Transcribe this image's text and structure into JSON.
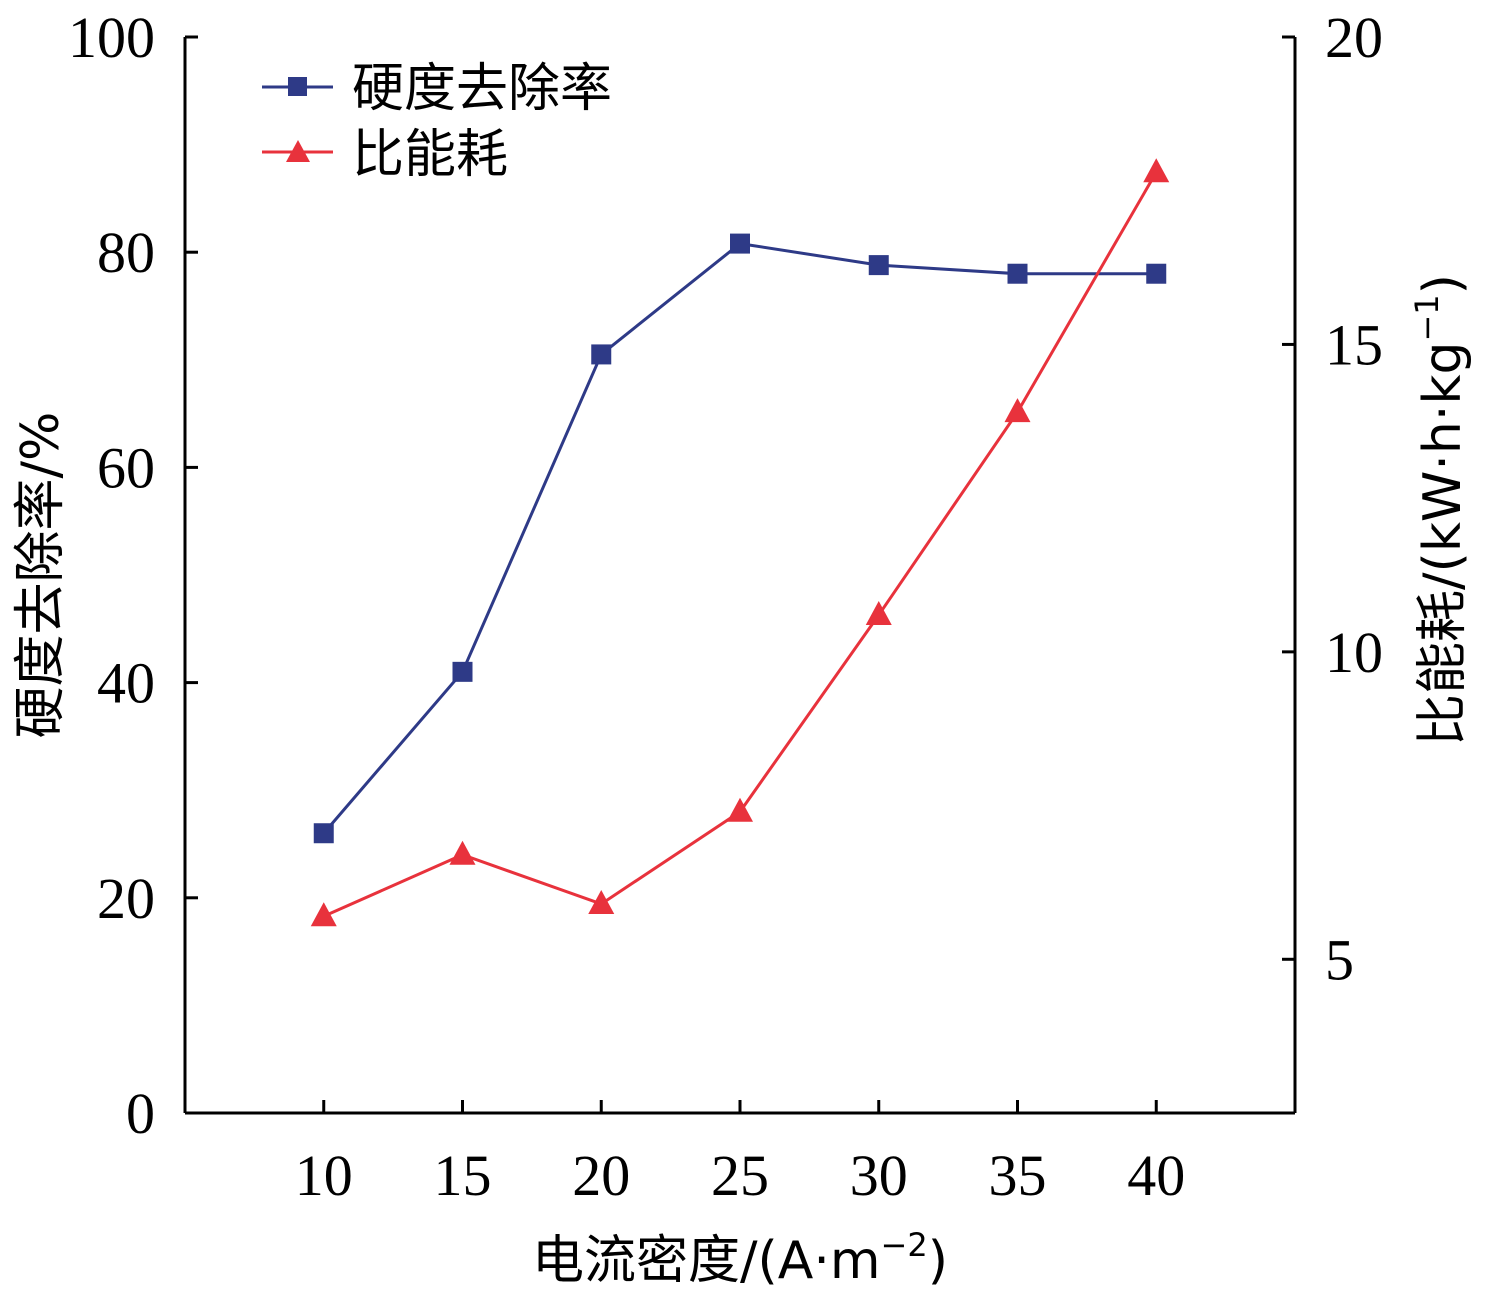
{
  "chart_data": {
    "type": "line",
    "x": [
      10,
      15,
      20,
      25,
      30,
      35,
      40
    ],
    "x_ticks": [
      "10",
      "15",
      "20",
      "25",
      "30",
      "35",
      "40"
    ],
    "xlim": [
      5,
      45
    ],
    "xlabel": "电流密度/(A·m",
    "xlabel_sup": "−2",
    "xlabel_close": ")",
    "ylabel_left": "硬度去除率/%",
    "ylim_left": [
      0,
      100
    ],
    "yticks_left": [
      "0",
      "20",
      "40",
      "60",
      "80",
      "100"
    ],
    "ylabel_right": "比能耗/(kW·h·kg",
    "ylabel_right_sup": "−1",
    "ylabel_right_close": ")",
    "ylim_right": [
      2.5,
      20
    ],
    "yticks_right": [
      "5",
      "10",
      "15",
      "20"
    ],
    "legend_position": "top-left",
    "grid": false,
    "series": [
      {
        "name": "硬度去除率",
        "axis": "left",
        "color": "#2e3a87",
        "marker": "square",
        "values": [
          26,
          41,
          70.5,
          80.8,
          78.8,
          78,
          78
        ]
      },
      {
        "name": "比能耗",
        "axis": "right",
        "color": "#e8323c",
        "marker": "triangle",
        "values": [
          5.7,
          6.7,
          5.9,
          7.4,
          10.6,
          13.9,
          17.8
        ]
      }
    ]
  }
}
